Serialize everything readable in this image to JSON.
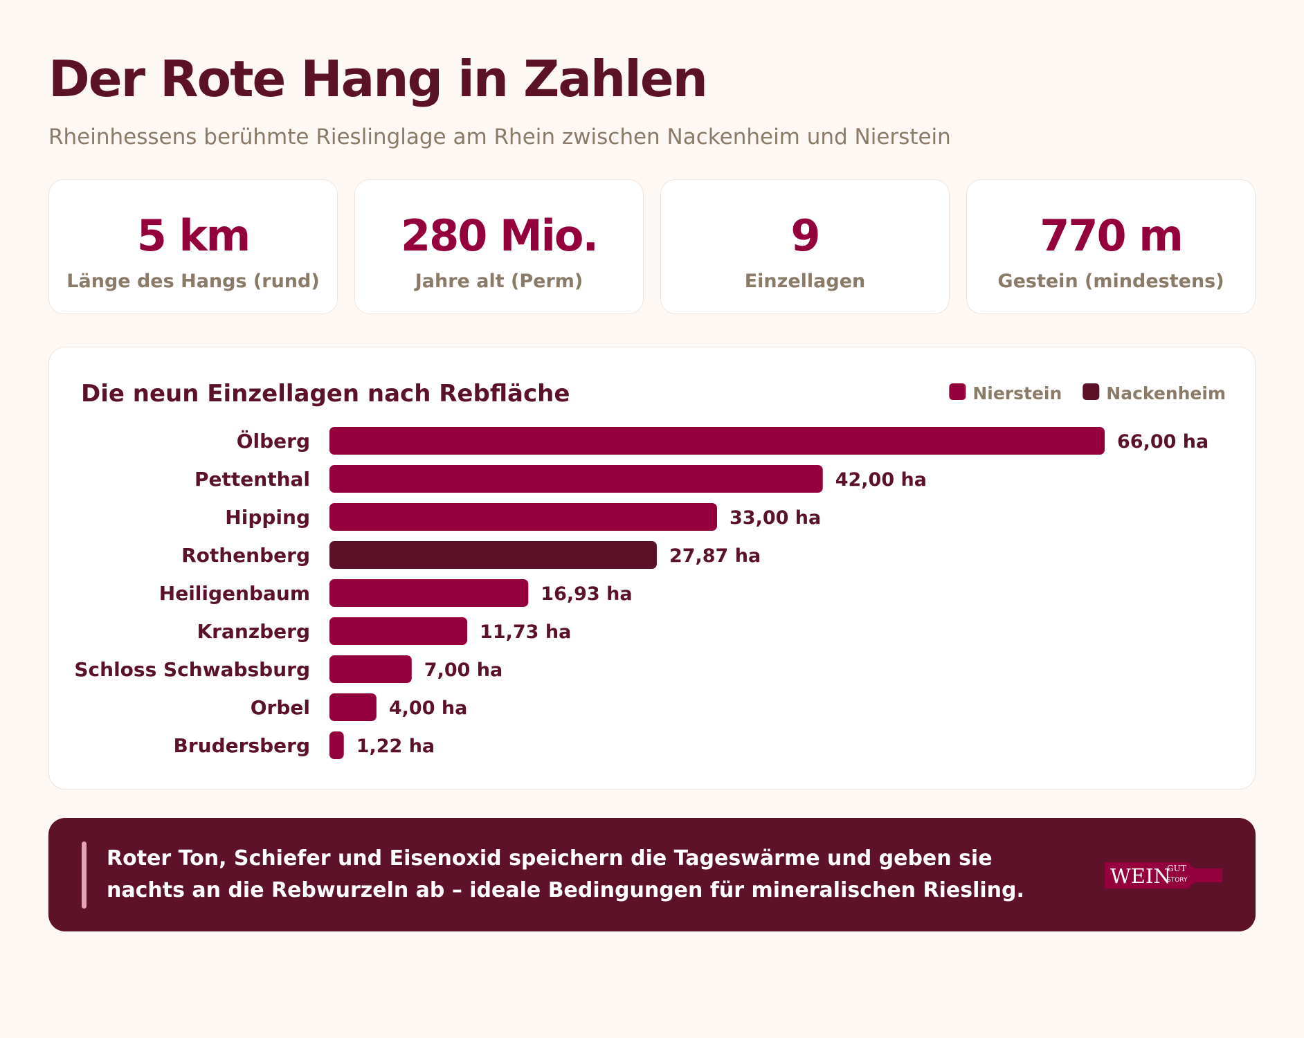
{
  "title": "Der Rote Hang in Zahlen",
  "subtitle": "Rheinhessens berühmte Rieslinglage am Rhein zwischen Nackenheim und Nierstein",
  "stats": [
    {
      "value": "5 km",
      "label": "Länge des Hangs (rund)"
    },
    {
      "value": "280 Mio.",
      "label": "Jahre alt (Perm)"
    },
    {
      "value": "9",
      "label": "Einzellagen"
    },
    {
      "value": "770 m",
      "label": "Gestein (mindestens)"
    }
  ],
  "chart_data": {
    "type": "bar",
    "orientation": "horizontal",
    "title": "Die neun Einzellagen nach Rebfläche",
    "categories": [
      "Ölberg",
      "Pettenthal",
      "Hipping",
      "Rothenberg",
      "Heiligenbaum",
      "Kranzberg",
      "Schloss Schwabsburg",
      "Orbel",
      "Brudersberg"
    ],
    "values": [
      66.0,
      42.0,
      33.0,
      27.87,
      16.93,
      11.73,
      7.0,
      4.0,
      1.22
    ],
    "value_labels": [
      "66,00 ha",
      "42,00 ha",
      "33,00 ha",
      "27,87 ha",
      "16,93 ha",
      "11,73 ha",
      "7,00 ha",
      "4,00 ha",
      "1,22 ha"
    ],
    "groups": [
      "Nierstein",
      "Nierstein",
      "Nierstein",
      "Nackenheim",
      "Nierstein",
      "Nierstein",
      "Nierstein",
      "Nierstein",
      "Nierstein"
    ],
    "legend": [
      {
        "name": "Nierstein",
        "color": "#93003c"
      },
      {
        "name": "Nackenheim",
        "color": "#5b1127"
      }
    ],
    "legend_position": "top-right",
    "xlim": [
      0,
      66
    ],
    "grid": false
  },
  "footer": {
    "text": "Roter Ton, Schiefer und Eisenoxid speichern die Tageswärme und geben sie nachts an die Rebwurzeln ab – ideale Bedingungen für mineralischen Riesling.",
    "logo_main": "WEIN",
    "logo_top": "GUT",
    "logo_bottom": "STORY"
  },
  "colors": {
    "accent": "#93003c",
    "dark": "#5b1127",
    "muted": "#8a7a68",
    "background": "#fdf8f4"
  }
}
